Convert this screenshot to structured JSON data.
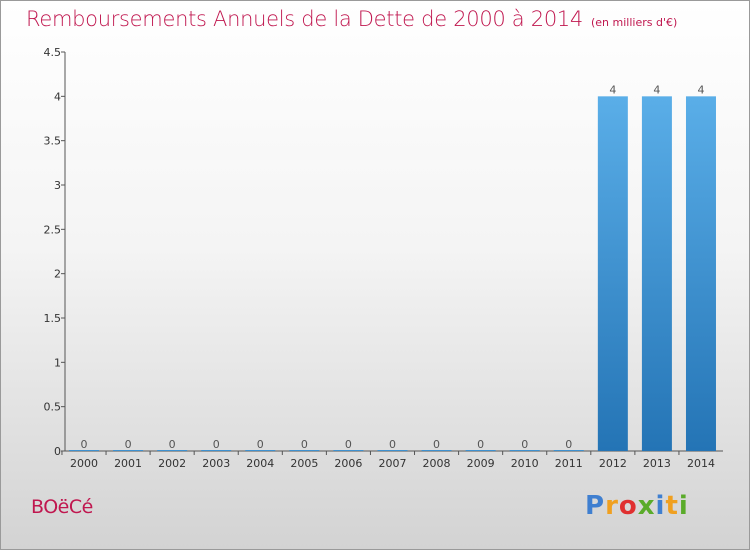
{
  "title": "Remboursements Annuels de la Dette de 2000 à 2014",
  "unit_note": "(en milliers d'€)",
  "commune": "BOëCé",
  "brand": {
    "p": "P",
    "r": "r",
    "o": "o",
    "x": "x",
    "i1": "i",
    "t": "t",
    "i2": "i"
  },
  "colors": {
    "title": "#c0174f",
    "bar_light": "#5aaee8",
    "bar_dark": "#2474b5"
  },
  "chart_data": {
    "type": "bar",
    "categories": [
      "2000",
      "2001",
      "2002",
      "2003",
      "2004",
      "2005",
      "2006",
      "2007",
      "2008",
      "2009",
      "2010",
      "2011",
      "2012",
      "2013",
      "2014"
    ],
    "values": [
      0,
      0,
      0,
      0,
      0,
      0,
      0,
      0,
      0,
      0,
      0,
      0,
      4,
      4,
      4
    ],
    "data_labels": [
      "0",
      "0",
      "0",
      "0",
      "0",
      "0",
      "0",
      "0",
      "0",
      "0",
      "0",
      "0",
      "4",
      "4",
      "4"
    ],
    "yticks": [
      0,
      0.5,
      1,
      1.5,
      2,
      2.5,
      3,
      3.5,
      4,
      4.5
    ],
    "ytick_labels": [
      "0",
      "0.5",
      "1",
      "1.5",
      "2",
      "2.5",
      "3",
      "3.5",
      "4",
      "4.5"
    ],
    "ylim": [
      0,
      4.5
    ],
    "grid": false,
    "legend": "none"
  }
}
